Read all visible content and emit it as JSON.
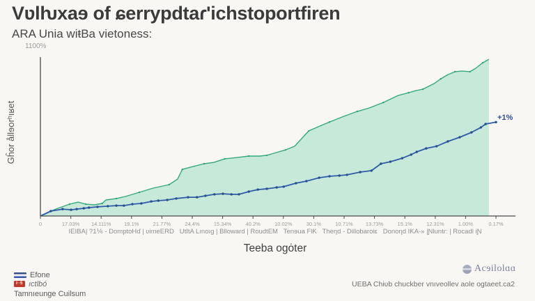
{
  "header": {
    "title": "Vʋlƕxaɘ of ɕerrypdtaɾ'ichstoportfiren",
    "subtitle": "ARA Unia wiŧBa vietoness:"
  },
  "chart_data": {
    "type": "area",
    "title": "Vʋlƕxaɘ of ɕerrypdtaɾ'ichstoportfiren",
    "xlabel": "Teeba ogȯter",
    "ylabel": "Gĥor ållɘorʰıʁet",
    "y_top_label": "1100%",
    "ylim": [
      0,
      1100
    ],
    "grid": false,
    "legend_position": "bottom-left",
    "x_tick_span": 0.966,
    "x_tick_labels": [
      "0",
      "17.03%",
      "14.111%",
      "19.1%",
      "21.77%",
      "24.4%",
      "15.34%",
      "40.2%",
      "10.02%",
      "30.1%",
      "10.71%",
      "13.73%",
      "15.1%",
      "12.31%",
      "1.00%",
      "0.17%"
    ],
    "x_categories_line": "IEIBA| ?1⅙ - DomptoHɗ | ʋimeERD   UtItA Lınoıg | Blloward | RoudtEM   Tenɘua FlƘ   Theƞd - Dillobaroiɛ   Donoƞd IƘA-» |Ɲluntɾ: | Rocadl iƝ",
    "annotation": "+1%",
    "series": [
      {
        "name": "teal-area-series",
        "line_color": "#35a87e",
        "fill_color": "#c6e9d9",
        "marker_color": "#2fa07a",
        "marker_every": 2,
        "marker_radius": 1.2,
        "filled": true,
        "points": [
          [
            0,
            0
          ],
          [
            0.032,
            48
          ],
          [
            0.062,
            82
          ],
          [
            0.08,
            96
          ],
          [
            0.096,
            82
          ],
          [
            0.114,
            77
          ],
          [
            0.131,
            87
          ],
          [
            0.139,
            111
          ],
          [
            0.161,
            121
          ],
          [
            0.18,
            135
          ],
          [
            0.21,
            164
          ],
          [
            0.239,
            193
          ],
          [
            0.273,
            217
          ],
          [
            0.291,
            256
          ],
          [
            0.301,
            323
          ],
          [
            0.318,
            338
          ],
          [
            0.347,
            362
          ],
          [
            0.368,
            371
          ],
          [
            0.391,
            396
          ],
          [
            0.417,
            405
          ],
          [
            0.442,
            415
          ],
          [
            0.465,
            415
          ],
          [
            0.48,
            420
          ],
          [
            0.495,
            434
          ],
          [
            0.52,
            458
          ],
          [
            0.539,
            483
          ],
          [
            0.569,
            589
          ],
          [
            0.589,
            618
          ],
          [
            0.613,
            651
          ],
          [
            0.643,
            690
          ],
          [
            0.672,
            724
          ],
          [
            0.697,
            748
          ],
          [
            0.727,
            786
          ],
          [
            0.759,
            835
          ],
          [
            0.781,
            854
          ],
          [
            0.796,
            868
          ],
          [
            0.811,
            878
          ],
          [
            0.835,
            917
          ],
          [
            0.849,
            950
          ],
          [
            0.864,
            979
          ],
          [
            0.879,
            999
          ],
          [
            0.894,
            1004
          ],
          [
            0.911,
            999
          ],
          [
            0.923,
            1023
          ],
          [
            0.938,
            1061
          ],
          [
            0.951,
            1085
          ]
        ]
      },
      {
        "name": "blue-line-series",
        "line_color": "#2e5ba8",
        "marker_color": "#27508f",
        "marker_every": 1,
        "marker_radius": 1.7,
        "filled": false,
        "points": [
          [
            0,
            0
          ],
          [
            0.022,
            34
          ],
          [
            0.047,
            48
          ],
          [
            0.065,
            43
          ],
          [
            0.077,
            48
          ],
          [
            0.092,
            53
          ],
          [
            0.103,
            58
          ],
          [
            0.121,
            63
          ],
          [
            0.143,
            68
          ],
          [
            0.161,
            72
          ],
          [
            0.177,
            72
          ],
          [
            0.195,
            82
          ],
          [
            0.214,
            87
          ],
          [
            0.235,
            101
          ],
          [
            0.25,
            106
          ],
          [
            0.269,
            111
          ],
          [
            0.288,
            121
          ],
          [
            0.313,
            130
          ],
          [
            0.332,
            130
          ],
          [
            0.35,
            140
          ],
          [
            0.369,
            150
          ],
          [
            0.387,
            154
          ],
          [
            0.405,
            150
          ],
          [
            0.421,
            150
          ],
          [
            0.442,
            169
          ],
          [
            0.461,
            183
          ],
          [
            0.48,
            188
          ],
          [
            0.501,
            198
          ],
          [
            0.516,
            203
          ],
          [
            0.542,
            227
          ],
          [
            0.564,
            241
          ],
          [
            0.591,
            265
          ],
          [
            0.613,
            275
          ],
          [
            0.634,
            280
          ],
          [
            0.65,
            285
          ],
          [
            0.678,
            304
          ],
          [
            0.702,
            314
          ],
          [
            0.722,
            362
          ],
          [
            0.742,
            376
          ],
          [
            0.767,
            400
          ],
          [
            0.786,
            425
          ],
          [
            0.798,
            444
          ],
          [
            0.818,
            468
          ],
          [
            0.84,
            483
          ],
          [
            0.864,
            516
          ],
          [
            0.889,
            545
          ],
          [
            0.914,
            579
          ],
          [
            0.934,
            613
          ],
          [
            0.944,
            637
          ],
          [
            0.966,
            650
          ]
        ]
      }
    ]
  },
  "legend": {
    "items": [
      {
        "icon": "flag-stripes-icon",
        "label": "Efone"
      },
      {
        "icon": "red-badge-icon",
        "badge_text": "ŀ·5",
        "label": "ıctlbó"
      },
      {
        "icon": "none",
        "label": "Tamnıeunge Cuilsum"
      }
    ]
  },
  "footer": {
    "logo_text": "Acɘilolɑɑ",
    "caption": "UEBA Chiʋb chuckber vnıveollev aole ogtaeet.ca2"
  },
  "colors": {
    "background": "#f8f7f4",
    "area_fill": "#c6e9d9",
    "teal_line": "#35a87e",
    "blue_line": "#2e5ba8",
    "axis": "#4a4a4a",
    "tick_label": "#9a9a9a",
    "annotation": "#2b4d9b"
  }
}
